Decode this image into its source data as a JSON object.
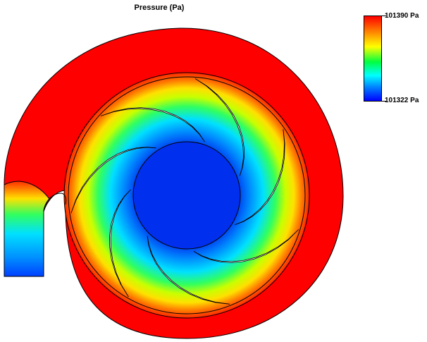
{
  "title": "Pressure (Pa)",
  "legend": {
    "max_label": "101390 Pa",
    "min_label": "101322 Pa",
    "colors": [
      "#ff0000",
      "#ff8000",
      "#ffff00",
      "#00ff40",
      "#00ffff",
      "#0080ff",
      "#0000ff"
    ]
  },
  "colors": {
    "volute": "#ff0000",
    "hub": "#0030ee",
    "high": "#ff0000",
    "low": "#0000ff"
  },
  "impeller": {
    "blade_count": 7
  }
}
